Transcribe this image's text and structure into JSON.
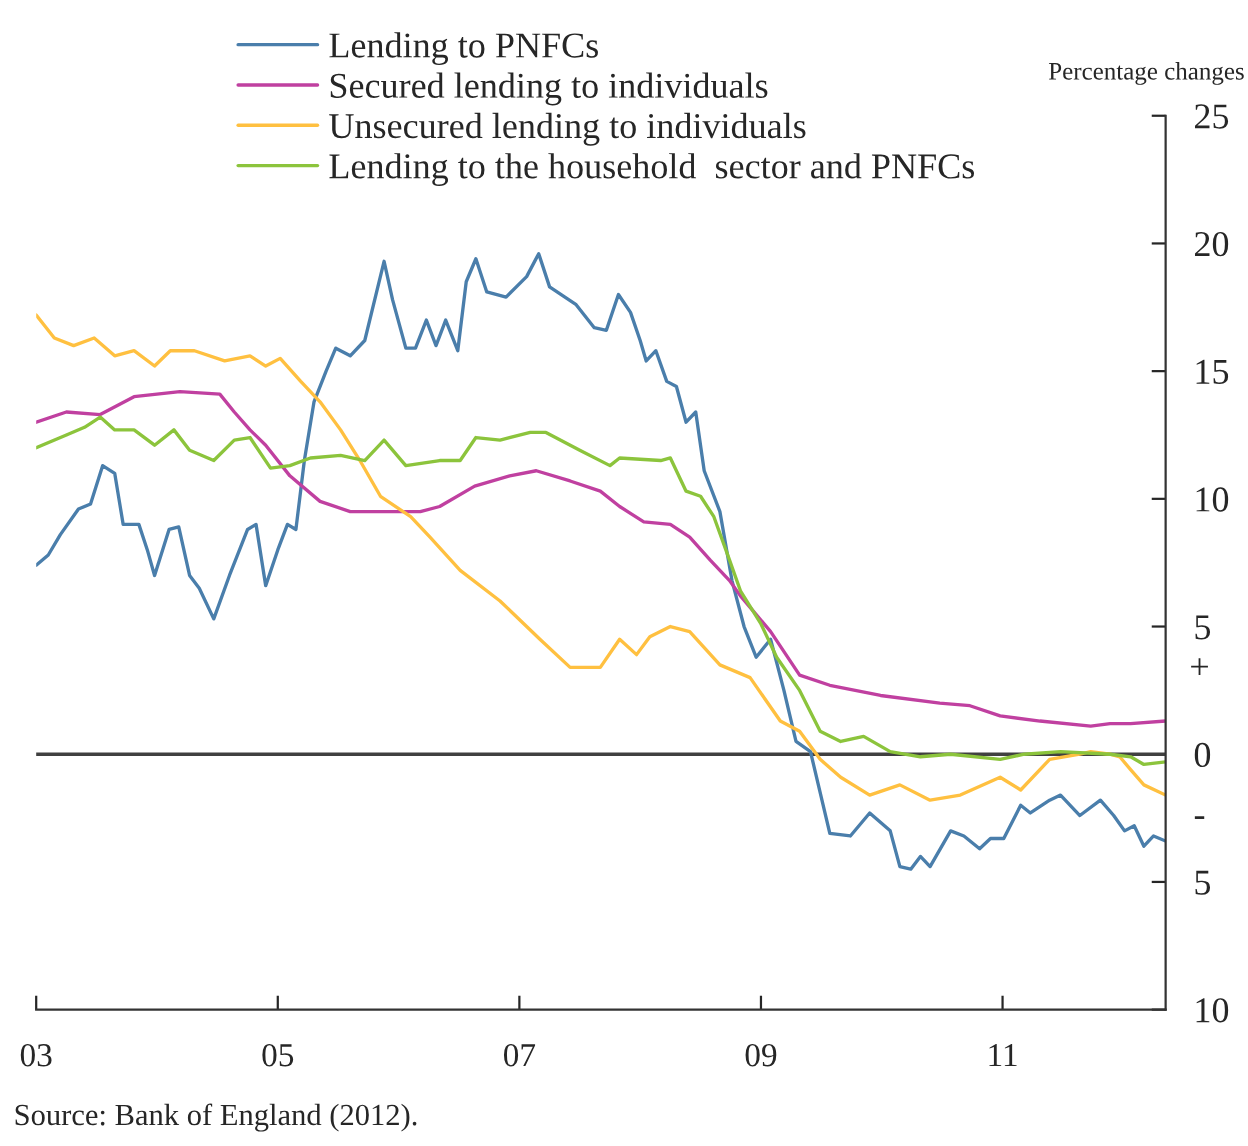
{
  "chart_data": {
    "type": "line",
    "ylabel": "Percentage changes",
    "annotations": [
      "+",
      "-",
      "Source: Bank of England (2012)."
    ],
    "xlim": [
      2003,
      2012.35
    ],
    "xticks": [
      {
        "value": 2003,
        "label": "03"
      },
      {
        "value": 2005,
        "label": "05"
      },
      {
        "value": 2007,
        "label": "07"
      },
      {
        "value": 2009,
        "label": "09"
      },
      {
        "value": 2011,
        "label": "11"
      }
    ],
    "ylim": [
      -10,
      25
    ],
    "yticks": [
      25,
      20,
      15,
      10,
      5,
      0,
      {
        "value": -5,
        "label": "5"
      },
      {
        "value": -10,
        "label": "10"
      }
    ],
    "ref_lines": [
      {
        "axis": "y",
        "value": 0,
        "color": "#404040"
      }
    ],
    "grid": false,
    "legend": "top left",
    "marker": "none",
    "line_style": "solid",
    "series": [
      {
        "name": "Lending to PNFCs",
        "color": "#4a7eab",
        "x": [
          2003.0,
          2003.1,
          2003.2,
          2003.35,
          2003.45,
          2003.55,
          2003.65,
          2003.72,
          2003.85,
          2003.92,
          2003.98,
          2004.1,
          2004.18,
          2004.27,
          2004.35,
          2004.47,
          2004.6,
          2004.75,
          2004.82,
          2004.9,
          2005.0,
          2005.08,
          2005.15,
          2005.22,
          2005.3,
          2005.4,
          2005.48,
          2005.6,
          2005.72,
          2005.88,
          2005.95,
          2006.06,
          2006.14,
          2006.23,
          2006.31,
          2006.39,
          2006.49,
          2006.56,
          2006.64,
          2006.73,
          2006.89,
          2007.06,
          2007.16,
          2007.25,
          2007.47,
          2007.62,
          2007.72,
          2007.82,
          2007.92,
          2008.0,
          2008.05,
          2008.13,
          2008.22,
          2008.3,
          2008.38,
          2008.46,
          2008.53,
          2008.66,
          2008.76,
          2008.86,
          2008.96,
          2009.08,
          2009.19,
          2009.29,
          2009.41,
          2009.57,
          2009.74,
          2009.9,
          2010.07,
          2010.15,
          2010.24,
          2010.32,
          2010.4,
          2010.57,
          2010.68,
          2010.81,
          2010.9,
          2011.01,
          2011.15,
          2011.23,
          2011.39,
          2011.48,
          2011.64,
          2011.81,
          2011.92,
          2012.01,
          2012.09,
          2012.17,
          2012.25,
          2012.35
        ],
        "values": [
          7.4,
          7.8,
          8.6,
          9.6,
          9.8,
          11.3,
          11.0,
          9.0,
          9.0,
          8.0,
          7.0,
          8.8,
          8.9,
          7.0,
          6.5,
          5.3,
          7.0,
          8.8,
          9.0,
          6.6,
          8.0,
          9.0,
          8.8,
          11.5,
          13.8,
          15.0,
          15.9,
          15.6,
          16.2,
          19.3,
          17.8,
          15.9,
          15.9,
          17.0,
          16.0,
          17.0,
          15.8,
          18.5,
          19.4,
          18.1,
          17.9,
          18.7,
          19.6,
          18.3,
          17.6,
          16.7,
          16.6,
          18.0,
          17.3,
          16.2,
          15.4,
          15.8,
          14.6,
          14.4,
          13.0,
          13.4,
          11.1,
          9.5,
          6.8,
          5.0,
          3.8,
          4.5,
          2.5,
          0.5,
          0.1,
          -3.1,
          -3.2,
          -2.3,
          -3.0,
          -4.4,
          -4.5,
          -4.0,
          -4.4,
          -3.0,
          -3.2,
          -3.7,
          -3.3,
          -3.3,
          -2.0,
          -2.3,
          -1.8,
          -1.6,
          -2.4,
          -1.8,
          -2.4,
          -3.0,
          -2.8,
          -3.6,
          -3.2,
          -3.4
        ]
      },
      {
        "name": "Secured lending to individuals",
        "color": "#c040a0",
        "x": [
          2003.0,
          2003.25,
          2003.53,
          2003.81,
          2004.19,
          2004.52,
          2004.64,
          2004.77,
          2004.9,
          2005.1,
          2005.35,
          2005.6,
          2005.85,
          2006.18,
          2006.34,
          2006.63,
          2006.92,
          2007.14,
          2007.42,
          2007.67,
          2007.83,
          2008.03,
          2008.25,
          2008.41,
          2008.58,
          2008.74,
          2008.83,
          2009.08,
          2009.32,
          2009.57,
          2009.99,
          2010.48,
          2010.73,
          2010.98,
          2011.31,
          2011.73,
          2011.89,
          2012.06,
          2012.35
        ],
        "values": [
          13.0,
          13.4,
          13.3,
          14.0,
          14.2,
          14.1,
          13.4,
          12.7,
          12.1,
          10.9,
          9.9,
          9.5,
          9.5,
          9.5,
          9.7,
          10.5,
          10.9,
          11.1,
          10.7,
          10.3,
          9.7,
          9.1,
          9.0,
          8.5,
          7.6,
          6.8,
          6.2,
          4.8,
          3.1,
          2.7,
          2.3,
          2.0,
          1.9,
          1.5,
          1.3,
          1.1,
          1.2,
          1.2,
          1.3
        ]
      },
      {
        "name": "Unsecured lending to individuals",
        "color": "#ffc040",
        "x": [
          2003.0,
          2003.15,
          2003.31,
          2003.48,
          2003.65,
          2003.81,
          2003.98,
          2004.11,
          2004.31,
          2004.56,
          2004.77,
          2004.9,
          2005.02,
          2005.19,
          2005.35,
          2005.52,
          2005.68,
          2005.85,
          2006.1,
          2006.26,
          2006.51,
          2006.84,
          2007.17,
          2007.42,
          2007.67,
          2007.83,
          2007.97,
          2008.08,
          2008.25,
          2008.41,
          2008.66,
          2008.91,
          2009.16,
          2009.32,
          2009.49,
          2009.66,
          2009.9,
          2010.15,
          2010.4,
          2010.65,
          2010.98,
          2011.15,
          2011.39,
          2011.64,
          2011.73,
          2011.89,
          2011.97,
          2012.06,
          2012.17,
          2012.35
        ],
        "values": [
          17.2,
          16.3,
          16.0,
          16.3,
          15.6,
          15.8,
          15.2,
          15.8,
          15.8,
          15.4,
          15.6,
          15.2,
          15.5,
          14.6,
          13.8,
          12.7,
          11.5,
          10.1,
          9.3,
          8.5,
          7.2,
          6.0,
          4.5,
          3.4,
          3.4,
          4.5,
          3.9,
          4.6,
          5.0,
          4.8,
          3.5,
          3.0,
          1.3,
          0.9,
          -0.2,
          -0.9,
          -1.6,
          -1.2,
          -1.8,
          -1.6,
          -0.9,
          -1.4,
          -0.2,
          0.0,
          0.1,
          0.0,
          -0.1,
          -0.6,
          -1.2,
          -1.6
        ]
      },
      {
        "name": "Lending to the household  sector and PNFCs",
        "color": "#8cc43c",
        "x": [
          2003.0,
          2003.25,
          2003.4,
          2003.53,
          2003.65,
          2003.81,
          2003.98,
          2004.14,
          2004.27,
          2004.47,
          2004.64,
          2004.77,
          2004.94,
          2005.1,
          2005.27,
          2005.52,
          2005.72,
          2005.88,
          2006.06,
          2006.34,
          2006.51,
          2006.64,
          2006.84,
          2007.09,
          2007.22,
          2007.5,
          2007.75,
          2007.83,
          2008.17,
          2008.25,
          2008.38,
          2008.5,
          2008.61,
          2008.74,
          2008.83,
          2009.0,
          2009.13,
          2009.32,
          2009.49,
          2009.66,
          2009.85,
          2010.07,
          2010.32,
          2010.57,
          2010.98,
          2011.18,
          2011.48,
          2011.89,
          2012.06,
          2012.17,
          2012.35
        ],
        "values": [
          12.0,
          12.5,
          12.8,
          13.2,
          12.7,
          12.7,
          12.1,
          12.7,
          11.9,
          11.5,
          12.3,
          12.4,
          11.2,
          11.3,
          11.6,
          11.7,
          11.5,
          12.3,
          11.3,
          11.5,
          11.5,
          12.4,
          12.3,
          12.6,
          12.6,
          11.9,
          11.3,
          11.6,
          11.5,
          11.6,
          10.3,
          10.1,
          9.3,
          7.6,
          6.4,
          5.1,
          3.8,
          2.5,
          0.9,
          0.5,
          0.7,
          0.1,
          -0.1,
          0.0,
          -0.2,
          0.0,
          0.1,
          0.0,
          -0.1,
          -0.4,
          -0.3
        ]
      }
    ]
  }
}
